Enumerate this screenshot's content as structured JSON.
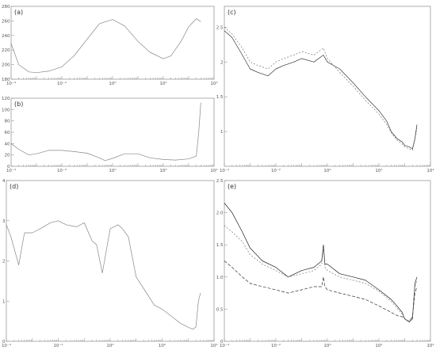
{
  "chart_data": [
    {
      "panel": "(a)",
      "type": "line",
      "xscale": "log",
      "xlim": [
        0.0001,
        10000
      ],
      "ylim": [
        180,
        280
      ],
      "xticks": [
        "10⁻⁴",
        "10⁻²",
        "10⁰",
        "10²",
        "10⁴"
      ],
      "yticks": [
        "180",
        "200",
        "220",
        "240",
        "260",
        "280"
      ],
      "series": [
        {
          "color": "#888888",
          "dash": "",
          "x": [
            0.0001,
            0.0002,
            0.0005,
            0.001,
            0.003,
            0.01,
            0.03,
            0.1,
            0.3,
            1,
            3,
            10,
            30,
            100,
            200,
            500,
            1000,
            2000,
            3000
          ],
          "y": [
            229,
            200,
            190,
            189,
            191,
            197,
            212,
            235,
            256,
            262,
            253,
            232,
            217,
            208,
            212,
            232,
            252,
            263,
            259
          ]
        }
      ]
    },
    {
      "panel": "(b)",
      "type": "line",
      "xscale": "log",
      "xlim": [
        0.0001,
        10000
      ],
      "ylim": [
        0,
        120
      ],
      "xticks": [
        "10⁻⁴",
        "10⁻²",
        "10⁰",
        "10²",
        "10⁴"
      ],
      "yticks": [
        "0",
        "20",
        "40",
        "60",
        "80",
        "100",
        "120"
      ],
      "series": [
        {
          "color": "#888888",
          "dash": "",
          "x": [
            0.0001,
            0.0002,
            0.0005,
            0.001,
            0.003,
            0.01,
            0.03,
            0.1,
            0.3,
            0.5,
            1,
            3,
            10,
            30,
            100,
            300,
            1000,
            2000,
            2500,
            3000
          ],
          "y": [
            40,
            30,
            20,
            22,
            28,
            28,
            26,
            23,
            15,
            10,
            14,
            22,
            22,
            15,
            12,
            11,
            13,
            18,
            60,
            112
          ]
        }
      ]
    },
    {
      "panel": "(c)",
      "type": "line",
      "xscale": "log",
      "xlim": [
        0.0001,
        10000
      ],
      "ylim": [
        0.5,
        2.8
      ],
      "xticks": [
        "10⁻⁴",
        "10⁻²",
        "10⁰",
        "10²",
        "10⁴"
      ],
      "yticks": [
        "1",
        "1.5",
        "2",
        "2.5"
      ],
      "series": [
        {
          "color": "#333333",
          "dash": "",
          "x": [
            0.0001,
            0.0002,
            0.0005,
            0.001,
            0.002,
            0.005,
            0.01,
            0.02,
            0.05,
            0.1,
            0.3,
            0.7,
            1,
            3,
            10,
            30,
            100,
            200,
            300,
            500,
            800,
            1000,
            1500,
            2000,
            2500,
            3000
          ],
          "y": [
            2.45,
            2.35,
            2.1,
            1.9,
            1.85,
            1.8,
            1.9,
            1.95,
            2.0,
            2.05,
            2.0,
            2.1,
            2.0,
            1.9,
            1.7,
            1.5,
            1.3,
            1.15,
            1.0,
            0.9,
            0.85,
            0.8,
            0.78,
            0.75,
            0.9,
            1.1
          ]
        },
        {
          "color": "#777777",
          "dash": "2,2",
          "x": [
            0.0001,
            0.0002,
            0.0005,
            0.001,
            0.002,
            0.005,
            0.01,
            0.02,
            0.05,
            0.1,
            0.3,
            0.7,
            1,
            3,
            10,
            30,
            100,
            200,
            300,
            500,
            800,
            1000,
            1500,
            2000,
            2500,
            3000
          ],
          "y": [
            2.5,
            2.4,
            2.2,
            2.0,
            1.95,
            1.9,
            2.0,
            2.05,
            2.1,
            2.15,
            2.1,
            2.2,
            2.05,
            1.85,
            1.65,
            1.45,
            1.25,
            1.1,
            0.98,
            0.88,
            0.82,
            0.78,
            0.75,
            0.73,
            0.88,
            1.05
          ]
        }
      ]
    },
    {
      "panel": "(d)",
      "type": "line",
      "xscale": "log",
      "xlim": [
        0.0001,
        10000
      ],
      "ylim": [
        0,
        4
      ],
      "xticks": [
        "10⁻⁴",
        "10⁻²",
        "10⁰",
        "10²",
        "10⁴"
      ],
      "yticks": [
        "0",
        "1",
        "2",
        "3",
        "4"
      ],
      "series": [
        {
          "color": "#888888",
          "dash": "",
          "x": [
            0.0001,
            0.00015,
            0.0003,
            0.0005,
            0.001,
            0.002,
            0.005,
            0.01,
            0.02,
            0.05,
            0.1,
            0.2,
            0.3,
            0.5,
            1,
            2,
            3,
            5,
            10,
            20,
            50,
            100,
            200,
            500,
            1000,
            1500,
            2000,
            2500,
            3000
          ],
          "y": [
            2.9,
            2.6,
            1.9,
            2.7,
            2.7,
            2.8,
            2.95,
            3.0,
            2.9,
            2.85,
            2.95,
            2.5,
            2.4,
            1.7,
            2.8,
            2.9,
            2.8,
            2.6,
            1.6,
            1.3,
            0.9,
            0.8,
            0.65,
            0.45,
            0.35,
            0.3,
            0.35,
            1.0,
            1.2
          ]
        }
      ]
    },
    {
      "panel": "(e)",
      "type": "line",
      "xscale": "log",
      "xlim": [
        0.0001,
        10000
      ],
      "ylim": [
        0,
        2.5
      ],
      "xticks": [
        "10⁻⁴",
        "10⁻²",
        "10⁰",
        "10²",
        "10⁴"
      ],
      "yticks": [
        "0",
        "0.5",
        "1.0",
        "1.5",
        "2.0",
        "2.5"
      ],
      "series": [
        {
          "color": "#222222",
          "dash": "",
          "x": [
            0.0001,
            0.0002,
            0.0005,
            0.001,
            0.003,
            0.01,
            0.03,
            0.1,
            0.3,
            0.6,
            0.7,
            0.8,
            1,
            3,
            10,
            30,
            100,
            300,
            500,
            800,
            1000,
            1500,
            2000,
            2500,
            3000
          ],
          "y": [
            2.15,
            2.0,
            1.7,
            1.45,
            1.25,
            1.15,
            1.0,
            1.1,
            1.15,
            1.25,
            1.5,
            1.2,
            1.2,
            1.05,
            1.0,
            0.95,
            0.8,
            0.65,
            0.55,
            0.45,
            0.35,
            0.3,
            0.35,
            0.9,
            1.0
          ]
        },
        {
          "color": "#777777",
          "dash": "2,2",
          "x": [
            0.0001,
            0.0002,
            0.0005,
            0.001,
            0.003,
            0.01,
            0.03,
            0.1,
            0.3,
            0.6,
            0.7,
            0.8,
            1,
            3,
            10,
            30,
            100,
            300,
            500,
            800,
            1000,
            1500,
            2000,
            2500,
            3000
          ],
          "y": [
            1.8,
            1.7,
            1.55,
            1.35,
            1.2,
            1.1,
            1.0,
            1.05,
            1.1,
            1.2,
            1.45,
            1.15,
            1.1,
            1.0,
            0.95,
            0.9,
            0.78,
            0.62,
            0.52,
            0.42,
            0.35,
            0.32,
            0.38,
            0.85,
            0.95
          ]
        },
        {
          "color": "#333333",
          "dash": "4,2",
          "x": [
            0.0001,
            0.0002,
            0.0005,
            0.001,
            0.003,
            0.01,
            0.03,
            0.1,
            0.3,
            0.6,
            0.7,
            0.8,
            1,
            3,
            10,
            30,
            100,
            300,
            500,
            800,
            1000,
            1500,
            2000,
            2500,
            3000
          ],
          "y": [
            1.25,
            1.15,
            1.0,
            0.9,
            0.85,
            0.8,
            0.75,
            0.8,
            0.85,
            0.85,
            1.0,
            0.85,
            0.8,
            0.75,
            0.7,
            0.65,
            0.55,
            0.45,
            0.4,
            0.38,
            0.35,
            0.3,
            0.38,
            0.75,
            0.85
          ]
        }
      ]
    }
  ]
}
